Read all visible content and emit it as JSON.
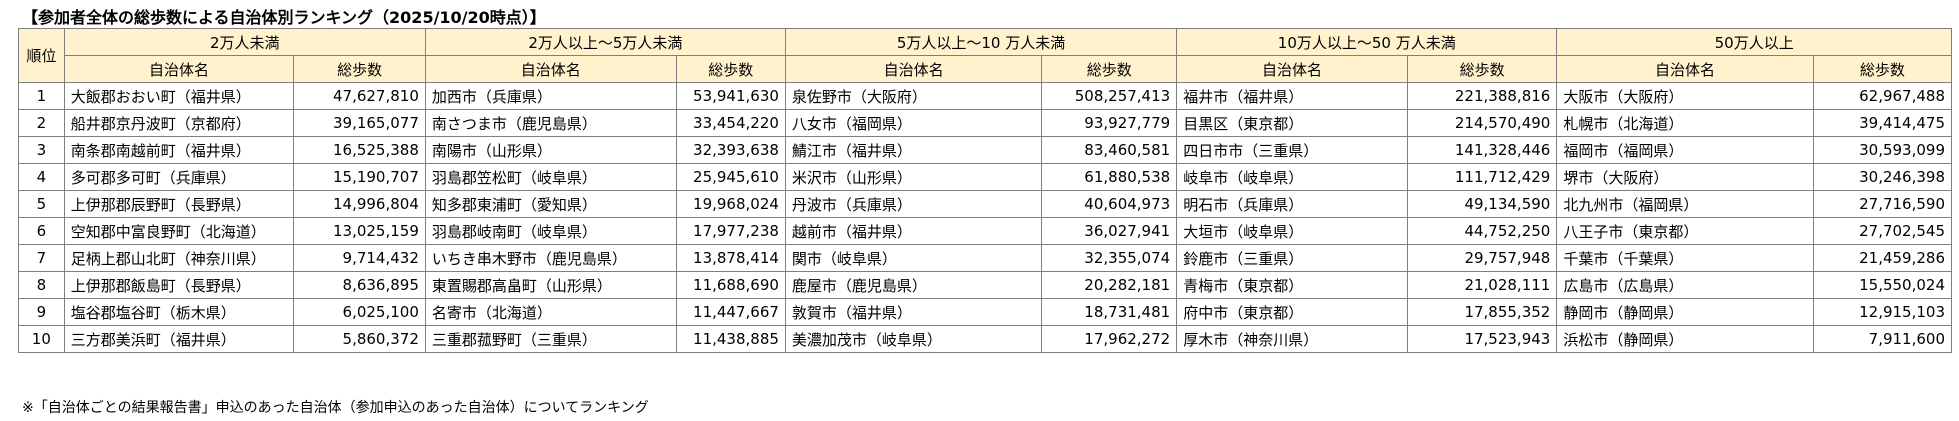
{
  "title": "【参加者全体の総歩数による自治体別ランキング（2025/10/20時点）】",
  "rank_header": "順位",
  "name_header": "自治体名",
  "steps_header": "総歩数",
  "groups": [
    {
      "label": "2万人未満",
      "rows": [
        [
          "大飯郡おおい町（福井県）",
          "47,627,810"
        ],
        [
          "船井郡京丹波町（京都府）",
          "39,165,077"
        ],
        [
          "南条郡南越前町（福井県）",
          "16,525,388"
        ],
        [
          "多可郡多可町（兵庫県）",
          "15,190,707"
        ],
        [
          "上伊那郡辰野町（長野県）",
          "14,996,804"
        ],
        [
          "空知郡中富良野町（北海道）",
          "13,025,159"
        ],
        [
          "足柄上郡山北町（神奈川県）",
          "9,714,432"
        ],
        [
          "上伊那郡飯島町（長野県）",
          "8,636,895"
        ],
        [
          "塩谷郡塩谷町（栃木県）",
          "6,025,100"
        ],
        [
          "三方郡美浜町（福井県）",
          "5,860,372"
        ]
      ]
    },
    {
      "label": "2万人以上～5万人未満",
      "rows": [
        [
          "加西市（兵庫県）",
          "53,941,630"
        ],
        [
          "南さつま市（鹿児島県）",
          "33,454,220"
        ],
        [
          "南陽市（山形県）",
          "32,393,638"
        ],
        [
          "羽島郡笠松町（岐阜県）",
          "25,945,610"
        ],
        [
          "知多郡東浦町（愛知県）",
          "19,968,024"
        ],
        [
          "羽島郡岐南町（岐阜県）",
          "17,977,238"
        ],
        [
          "いちき串木野市（鹿児島県）",
          "13,878,414"
        ],
        [
          "東置賜郡高畠町（山形県）",
          "11,688,690"
        ],
        [
          "名寄市（北海道）",
          "11,447,667"
        ],
        [
          "三重郡菰野町（三重県）",
          "11,438,885"
        ]
      ]
    },
    {
      "label": "5万人以上～10 万人未満",
      "rows": [
        [
          "泉佐野市（大阪府）",
          "508,257,413"
        ],
        [
          "八女市（福岡県）",
          "93,927,779"
        ],
        [
          "鯖江市（福井県）",
          "83,460,581"
        ],
        [
          "米沢市（山形県）",
          "61,880,538"
        ],
        [
          "丹波市（兵庫県）",
          "40,604,973"
        ],
        [
          "越前市（福井県）",
          "36,027,941"
        ],
        [
          "関市（岐阜県）",
          "32,355,074"
        ],
        [
          "鹿屋市（鹿児島県）",
          "20,282,181"
        ],
        [
          "敦賀市（福井県）",
          "18,731,481"
        ],
        [
          "美濃加茂市（岐阜県）",
          "17,962,272"
        ]
      ]
    },
    {
      "label": "10万人以上～50 万人未満",
      "rows": [
        [
          "福井市（福井県）",
          "221,388,816"
        ],
        [
          "目黒区（東京都）",
          "214,570,490"
        ],
        [
          "四日市市（三重県）",
          "141,328,446"
        ],
        [
          "岐阜市（岐阜県）",
          "111,712,429"
        ],
        [
          "明石市（兵庫県）",
          "49,134,590"
        ],
        [
          "大垣市（岐阜県）",
          "44,752,250"
        ],
        [
          "鈴鹿市（三重県）",
          "29,757,948"
        ],
        [
          "青梅市（東京都）",
          "21,028,111"
        ],
        [
          "府中市（東京都）",
          "17,855,352"
        ],
        [
          "厚木市（神奈川県）",
          "17,523,943"
        ]
      ]
    },
    {
      "label": "50万人以上",
      "rows": [
        [
          "大阪市（大阪府）",
          "62,967,488"
        ],
        [
          "札幌市（北海道）",
          "39,414,475"
        ],
        [
          "福岡市（福岡県）",
          "30,593,099"
        ],
        [
          "堺市（大阪府）",
          "30,246,398"
        ],
        [
          "北九州市（福岡県）",
          "27,716,590"
        ],
        [
          "八王子市（東京都）",
          "27,702,545"
        ],
        [
          "千葉市（千葉県）",
          "21,459,286"
        ],
        [
          "広島市（広島県）",
          "15,550,024"
        ],
        [
          "静岡市（静岡県）",
          "12,915,103"
        ],
        [
          "浜松市（静岡県）",
          "7,911,600"
        ]
      ]
    }
  ],
  "ranks": [
    "1",
    "2",
    "3",
    "4",
    "5",
    "6",
    "7",
    "8",
    "9",
    "10"
  ],
  "note": "※「自治体ごとの結果報告書」申込のあった自治体（参加申込のあった自治体）についてランキング",
  "colors": {
    "header_bg": "#fff2cc",
    "border": "#7f7f7f"
  }
}
